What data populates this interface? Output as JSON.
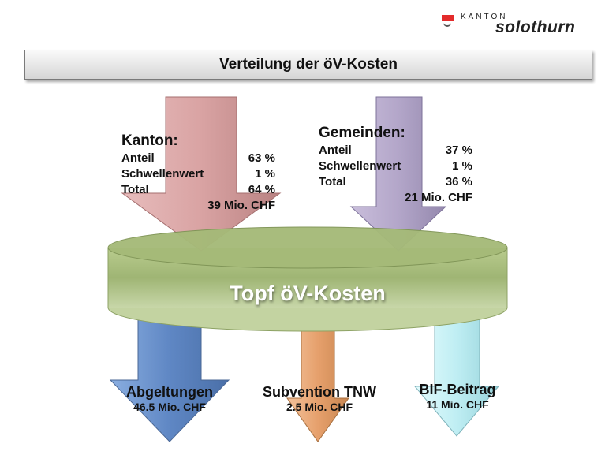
{
  "logo": {
    "kanton": "KANTON",
    "name": "solothurn"
  },
  "title": "Verteilung der öV-Kosten",
  "kanton": {
    "heading": "Kanton:",
    "rows": [
      {
        "label": "Anteil",
        "value": "63 %"
      },
      {
        "label": "Schwellenwert",
        "value": "1 %"
      },
      {
        "label": "Total",
        "value": "64 %"
      }
    ],
    "amount": "39 Mio. CHF"
  },
  "gemeinden": {
    "heading": "Gemeinden:",
    "rows": [
      {
        "label": "Anteil",
        "value": "37 %"
      },
      {
        "label": "Schwellenwert",
        "value": "1 %"
      },
      {
        "label": "Total",
        "value": "36 %"
      }
    ],
    "amount": "21 Mio. CHF"
  },
  "pot": "Topf öV-Kosten",
  "outputs": [
    {
      "name": "Abgeltungen",
      "value": "46.5 Mio. CHF"
    },
    {
      "name": "Subvention TNW",
      "value": "2.5 Mio. CHF"
    },
    {
      "name": "BIF-Beitrag",
      "value": "11 Mio. CHF"
    }
  ],
  "colors": {
    "kanton_arrow": "#d9a3a3",
    "gemeinden_arrow": "#b3a6c9",
    "pot": "#a9bd7d",
    "abgeltungen_arrow": "#5f87c4",
    "tnw_arrow": "#e6a06c",
    "bif_arrow": "#bfeef3"
  }
}
